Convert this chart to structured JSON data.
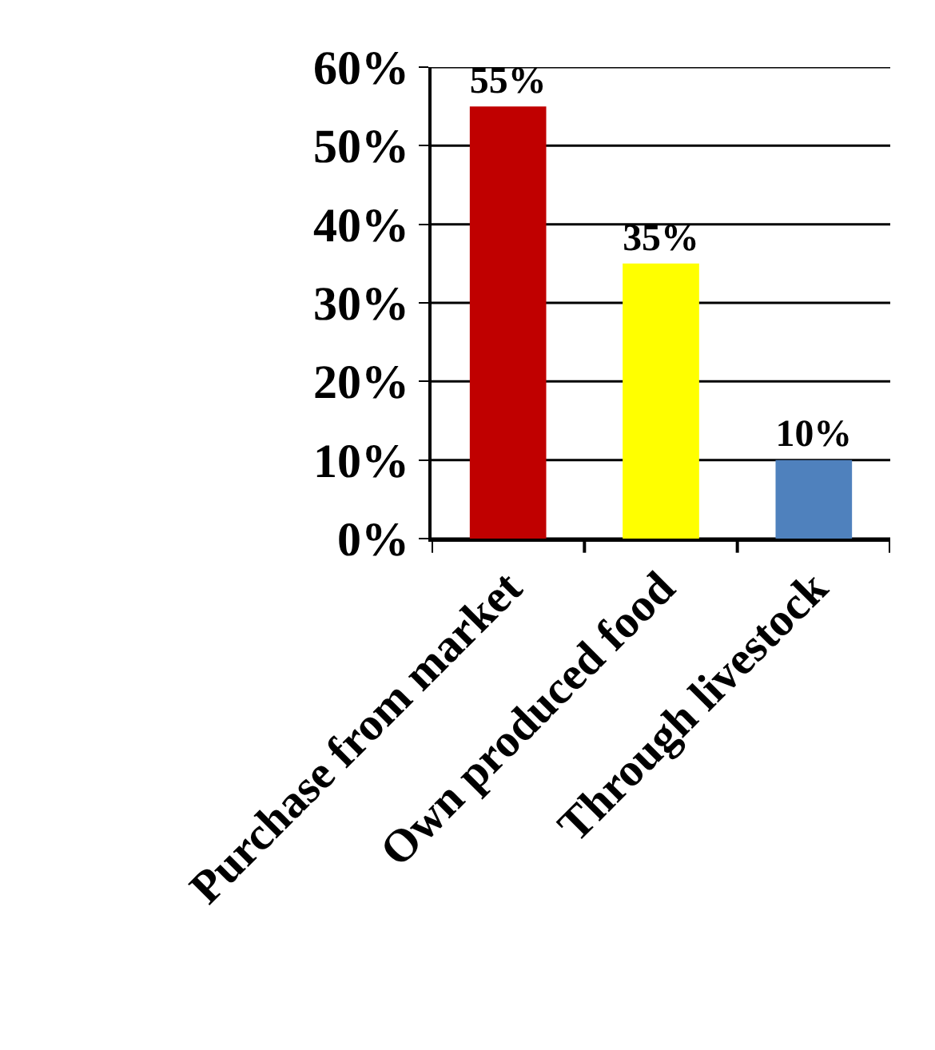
{
  "chart_data": {
    "type": "bar",
    "categories": [
      "Purchase from market",
      "Own produced food",
      "Through livestock"
    ],
    "values": [
      55,
      35,
      10
    ],
    "colors": [
      "#c00000",
      "#ffff00",
      "#4f81bd"
    ],
    "value_labels": [
      "55%",
      "35%",
      "10%"
    ],
    "ylim": [
      0,
      60
    ],
    "yticks": [
      {
        "value": 0,
        "label": "0%"
      },
      {
        "value": 10,
        "label": "10%"
      },
      {
        "value": 20,
        "label": "20%"
      },
      {
        "value": 30,
        "label": "30%"
      },
      {
        "value": 40,
        "label": "40%"
      },
      {
        "value": 50,
        "label": "50%"
      },
      {
        "value": 60,
        "label": "60%"
      }
    ],
    "grid": "y"
  }
}
